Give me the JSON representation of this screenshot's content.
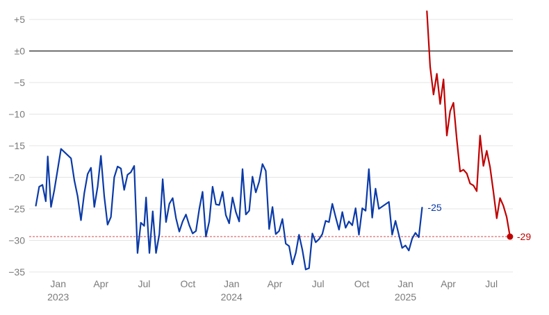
{
  "colors": {
    "blue": "#0a3aa8",
    "red": "#c00000",
    "grid": "#e4e4e4",
    "zero": "#222222",
    "ref": "#d24a4a",
    "tick": "#7a7a7a"
  },
  "chart_data": {
    "type": "line",
    "grid": true,
    "ylim": [
      -35,
      5
    ],
    "y_ticks": [
      {
        "value": 5,
        "label": "+5"
      },
      {
        "value": 0,
        "label": "±0"
      },
      {
        "value": -5,
        "label": "−5"
      },
      {
        "value": -10,
        "label": "−10"
      },
      {
        "value": -15,
        "label": "−15"
      },
      {
        "value": -20,
        "label": "−20"
      },
      {
        "value": -25,
        "label": "−25"
      },
      {
        "value": -30,
        "label": "−30"
      },
      {
        "value": -35,
        "label": "−35"
      }
    ],
    "x_range": [
      "2022-11-01",
      "2025-08-15"
    ],
    "x_ticks": [
      {
        "date": "2023-01-01",
        "label": "Jan",
        "year": "2023"
      },
      {
        "date": "2023-04-01",
        "label": "Apr",
        "year": ""
      },
      {
        "date": "2023-07-01",
        "label": "Jul",
        "year": ""
      },
      {
        "date": "2023-10-01",
        "label": "Oct",
        "year": ""
      },
      {
        "date": "2024-01-01",
        "label": "Jan",
        "year": "2024"
      },
      {
        "date": "2024-04-01",
        "label": "Apr",
        "year": ""
      },
      {
        "date": "2024-07-01",
        "label": "Jul",
        "year": ""
      },
      {
        "date": "2024-10-01",
        "label": "Oct",
        "year": ""
      },
      {
        "date": "2025-01-01",
        "label": "Jan",
        "year": "2025"
      },
      {
        "date": "2025-04-01",
        "label": "Apr",
        "year": ""
      },
      {
        "date": "2025-07-01",
        "label": "Jul",
        "year": ""
      }
    ],
    "reference_line": -29.4,
    "series": [
      {
        "color": "#0a3aa8",
        "end_label": "-25",
        "points": [
          [
            "2022-11-15",
            -24.5
          ],
          [
            "2022-11-22",
            -21.5
          ],
          [
            "2022-11-29",
            -21.2
          ],
          [
            "2022-12-06",
            -23.8
          ],
          [
            "2022-12-10",
            -16.7
          ],
          [
            "2022-12-17",
            -24.7
          ],
          [
            "2022-12-24",
            -22.0
          ],
          [
            "2023-01-07",
            -15.5
          ],
          [
            "2023-01-28",
            -17.0
          ],
          [
            "2023-02-04",
            -20.5
          ],
          [
            "2023-02-11",
            -23.0
          ],
          [
            "2023-02-18",
            -26.8
          ],
          [
            "2023-02-25",
            -22.5
          ],
          [
            "2023-03-04",
            -19.5
          ],
          [
            "2023-03-11",
            -18.5
          ],
          [
            "2023-03-18",
            -24.7
          ],
          [
            "2023-03-25",
            -21.5
          ],
          [
            "2023-04-01",
            -16.6
          ],
          [
            "2023-04-08",
            -23.0
          ],
          [
            "2023-04-15",
            -27.5
          ],
          [
            "2023-04-22",
            -26.3
          ],
          [
            "2023-04-29",
            -20.0
          ],
          [
            "2023-05-06",
            -18.3
          ],
          [
            "2023-05-13",
            -18.6
          ],
          [
            "2023-05-20",
            -22.0
          ],
          [
            "2023-05-27",
            -19.6
          ],
          [
            "2023-06-03",
            -19.2
          ],
          [
            "2023-06-10",
            -18.2
          ],
          [
            "2023-06-17",
            -32.0
          ],
          [
            "2023-06-24",
            -27.2
          ],
          [
            "2023-07-01",
            -27.7
          ],
          [
            "2023-07-05",
            -23.2
          ],
          [
            "2023-07-12",
            -32.0
          ],
          [
            "2023-07-19",
            -25.4
          ],
          [
            "2023-07-26",
            -32.0
          ],
          [
            "2023-08-02",
            -29.0
          ],
          [
            "2023-08-09",
            -20.3
          ],
          [
            "2023-08-16",
            -27.1
          ],
          [
            "2023-08-23",
            -24.2
          ],
          [
            "2023-08-30",
            -23.3
          ],
          [
            "2023-09-06",
            -26.5
          ],
          [
            "2023-09-13",
            -28.6
          ],
          [
            "2023-09-20",
            -27.0
          ],
          [
            "2023-09-27",
            -25.9
          ],
          [
            "2023-10-04",
            -27.6
          ],
          [
            "2023-10-11",
            -28.9
          ],
          [
            "2023-10-18",
            -28.5
          ],
          [
            "2023-10-25",
            -25.0
          ],
          [
            "2023-11-01",
            -22.3
          ],
          [
            "2023-11-08",
            -29.4
          ],
          [
            "2023-11-15",
            -27.0
          ],
          [
            "2023-11-22",
            -21.5
          ],
          [
            "2023-11-29",
            -24.3
          ],
          [
            "2023-12-06",
            -24.4
          ],
          [
            "2023-12-13",
            -22.3
          ],
          [
            "2023-12-20",
            -26.0
          ],
          [
            "2023-12-27",
            -27.3
          ],
          [
            "2024-01-03",
            -23.2
          ],
          [
            "2024-01-10",
            -25.5
          ],
          [
            "2024-01-17",
            -27.0
          ],
          [
            "2024-01-24",
            -18.7
          ],
          [
            "2024-01-31",
            -25.9
          ],
          [
            "2024-02-07",
            -25.3
          ],
          [
            "2024-02-14",
            -19.9
          ],
          [
            "2024-02-21",
            -22.4
          ],
          [
            "2024-02-28",
            -20.7
          ],
          [
            "2024-03-06",
            -17.9
          ],
          [
            "2024-03-13",
            -19.0
          ],
          [
            "2024-03-20",
            -28.2
          ],
          [
            "2024-03-27",
            -24.7
          ],
          [
            "2024-04-03",
            -29.0
          ],
          [
            "2024-04-10",
            -28.5
          ],
          [
            "2024-04-17",
            -26.6
          ],
          [
            "2024-04-24",
            -30.5
          ],
          [
            "2024-05-01",
            -30.9
          ],
          [
            "2024-05-08",
            -33.8
          ],
          [
            "2024-05-15",
            -32.0
          ],
          [
            "2024-05-22",
            -29.1
          ],
          [
            "2024-05-29",
            -31.5
          ],
          [
            "2024-06-05",
            -34.6
          ],
          [
            "2024-06-12",
            -34.4
          ],
          [
            "2024-06-19",
            -28.9
          ],
          [
            "2024-06-26",
            -30.3
          ],
          [
            "2024-07-03",
            -29.8
          ],
          [
            "2024-07-10",
            -29.0
          ],
          [
            "2024-07-17",
            -26.9
          ],
          [
            "2024-07-24",
            -27.1
          ],
          [
            "2024-07-31",
            -24.2
          ],
          [
            "2024-08-07",
            -26.3
          ],
          [
            "2024-08-14",
            -28.3
          ],
          [
            "2024-08-21",
            -25.5
          ],
          [
            "2024-08-28",
            -28.0
          ],
          [
            "2024-09-04",
            -27.0
          ],
          [
            "2024-09-11",
            -27.6
          ],
          [
            "2024-09-18",
            -24.9
          ],
          [
            "2024-09-25",
            -29.1
          ],
          [
            "2024-10-02",
            -24.9
          ],
          [
            "2024-10-09",
            -25.3
          ],
          [
            "2024-10-16",
            -18.7
          ],
          [
            "2024-10-23",
            -26.4
          ],
          [
            "2024-10-30",
            -21.8
          ],
          [
            "2024-11-06",
            -25.0
          ],
          [
            "2024-11-27",
            -23.9
          ],
          [
            "2024-12-04",
            -29.1
          ],
          [
            "2024-12-11",
            -26.9
          ],
          [
            "2024-12-18",
            -29.1
          ],
          [
            "2024-12-25",
            -31.2
          ],
          [
            "2025-01-01",
            -30.8
          ],
          [
            "2025-01-08",
            -31.6
          ],
          [
            "2025-01-15",
            -29.7
          ],
          [
            "2025-01-22",
            -28.8
          ],
          [
            "2025-01-29",
            -29.5
          ],
          [
            "2025-02-05",
            -24.8
          ]
        ]
      },
      {
        "color": "#c00000",
        "end_label": "-29",
        "points": [
          [
            "2025-02-15",
            6.3
          ],
          [
            "2025-02-22",
            -2.5
          ],
          [
            "2025-03-01",
            -6.9
          ],
          [
            "2025-03-08",
            -3.6
          ],
          [
            "2025-03-15",
            -8.4
          ],
          [
            "2025-03-22",
            -4.5
          ],
          [
            "2025-03-29",
            -13.4
          ],
          [
            "2025-04-05",
            -9.5
          ],
          [
            "2025-04-12",
            -8.2
          ],
          [
            "2025-04-19",
            -14.0
          ],
          [
            "2025-04-26",
            -19.1
          ],
          [
            "2025-05-03",
            -18.8
          ],
          [
            "2025-05-10",
            -19.4
          ],
          [
            "2025-05-17",
            -21.0
          ],
          [
            "2025-05-24",
            -21.3
          ],
          [
            "2025-05-31",
            -22.2
          ],
          [
            "2025-06-07",
            -13.4
          ],
          [
            "2025-06-14",
            -18.2
          ],
          [
            "2025-06-21",
            -15.8
          ],
          [
            "2025-06-28",
            -18.4
          ],
          [
            "2025-07-05",
            -22.3
          ],
          [
            "2025-07-12",
            -26.5
          ],
          [
            "2025-07-19",
            -23.3
          ],
          [
            "2025-07-26",
            -24.5
          ],
          [
            "2025-08-02",
            -26.3
          ],
          [
            "2025-08-09",
            -29.4
          ]
        ]
      }
    ]
  }
}
